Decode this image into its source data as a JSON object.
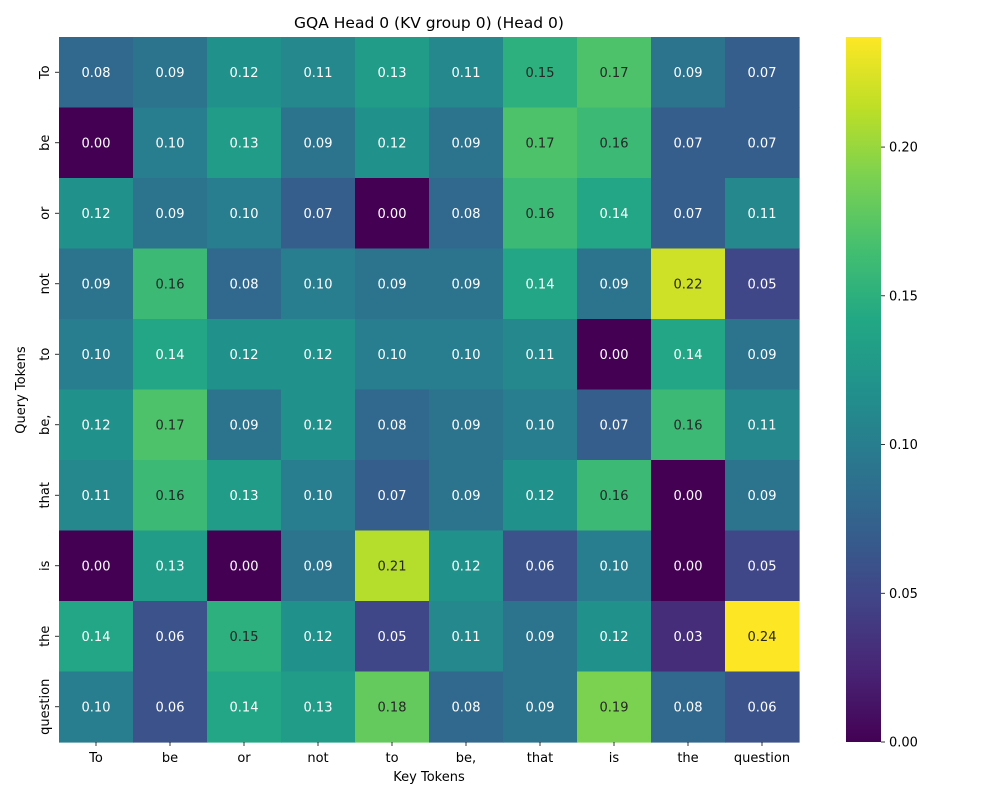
{
  "chart_data": {
    "type": "heatmap",
    "title": "GQA Head 0 (KV group 0) (Head 0)",
    "xlabel": "Key Tokens",
    "ylabel": "Query Tokens",
    "x_categories": [
      "To",
      "be",
      "or",
      "not",
      "to",
      "be,",
      "that",
      "is",
      "the",
      "question"
    ],
    "y_categories": [
      "To",
      "be",
      "or",
      "not",
      "to",
      "be,",
      "that",
      "is",
      "the",
      "question"
    ],
    "values": [
      [
        0.08,
        0.09,
        0.12,
        0.11,
        0.13,
        0.11,
        0.15,
        0.17,
        0.09,
        0.07
      ],
      [
        0.0,
        0.1,
        0.13,
        0.09,
        0.12,
        0.09,
        0.17,
        0.16,
        0.07,
        0.07
      ],
      [
        0.12,
        0.09,
        0.1,
        0.07,
        0.0,
        0.08,
        0.16,
        0.14,
        0.07,
        0.11
      ],
      [
        0.09,
        0.16,
        0.08,
        0.1,
        0.09,
        0.09,
        0.14,
        0.09,
        0.22,
        0.05
      ],
      [
        0.1,
        0.14,
        0.12,
        0.12,
        0.1,
        0.1,
        0.11,
        0.0,
        0.14,
        0.09
      ],
      [
        0.12,
        0.17,
        0.09,
        0.12,
        0.08,
        0.09,
        0.1,
        0.07,
        0.16,
        0.11
      ],
      [
        0.11,
        0.16,
        0.13,
        0.1,
        0.07,
        0.09,
        0.12,
        0.16,
        0.0,
        0.09
      ],
      [
        0.0,
        0.13,
        0.0,
        0.09,
        0.21,
        0.12,
        0.06,
        0.1,
        0.0,
        0.05
      ],
      [
        0.14,
        0.06,
        0.15,
        0.12,
        0.05,
        0.11,
        0.09,
        0.12,
        0.03,
        0.24
      ],
      [
        0.1,
        0.06,
        0.14,
        0.13,
        0.18,
        0.08,
        0.09,
        0.19,
        0.08,
        0.06
      ]
    ],
    "colormap": "viridis",
    "vmin": 0.0,
    "vmax": 0.237,
    "colorbar_ticks": [
      "0.00",
      "0.05",
      "0.10",
      "0.15",
      "0.20"
    ],
    "colorbar_tick_values": [
      0.0,
      0.05,
      0.1,
      0.15,
      0.2
    ],
    "annotations": true,
    "annotation_format": "2 decimals",
    "grid": false,
    "legend": "colorbar-right"
  }
}
